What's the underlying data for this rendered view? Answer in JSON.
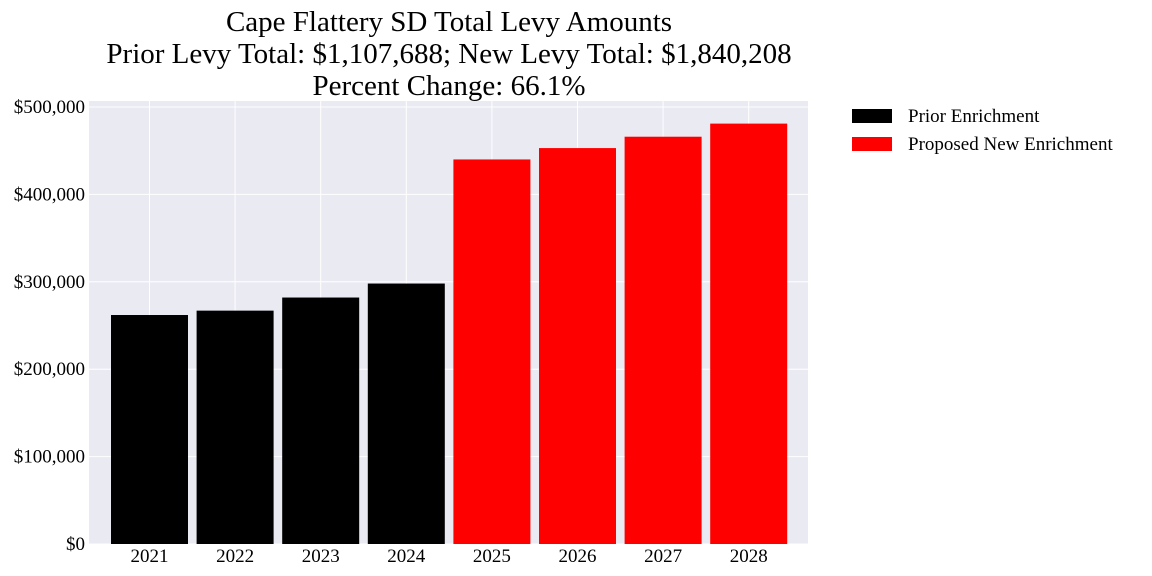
{
  "chart_data": {
    "type": "bar",
    "title_lines": [
      "Cape Flattery SD Total Levy Amounts",
      "Prior Levy Total:  $1,107,688; New Levy Total: $1,840,208",
      "Percent Change: 66.1%"
    ],
    "xlabel": "",
    "ylabel": "",
    "categories": [
      "2021",
      "2022",
      "2023",
      "2024",
      "2025",
      "2026",
      "2027",
      "2028"
    ],
    "series": [
      {
        "name": "Prior Enrichment",
        "color": "#000000",
        "values": [
          262000,
          267000,
          282000,
          298000,
          null,
          null,
          null,
          null
        ]
      },
      {
        "name": "Proposed New Enrichment",
        "color": "#ff0000",
        "values": [
          null,
          null,
          null,
          null,
          440000,
          453000,
          466000,
          481000
        ]
      }
    ],
    "ylim": [
      0,
      500000
    ],
    "yticks": [
      0,
      100000,
      200000,
      300000,
      400000,
      500000
    ],
    "ytick_labels": [
      "$0",
      "$100,000",
      "$200,000",
      "$300,000",
      "$400,000",
      "$500,000"
    ],
    "grid": true,
    "legend_position": "outside-right-top",
    "plot_background": "#eaeaf2"
  }
}
